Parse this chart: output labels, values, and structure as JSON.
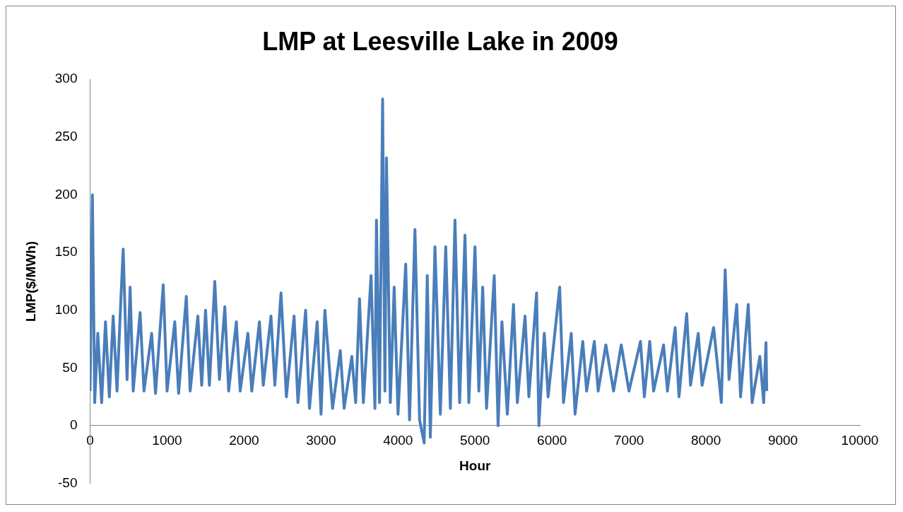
{
  "chart_data": {
    "type": "line",
    "title": "LMP at Leesville Lake in 2009",
    "xlabel": "Hour",
    "ylabel": "LMP($/MWh)",
    "x": [
      0,
      30,
      60,
      100,
      150,
      200,
      250,
      300,
      350,
      400,
      430,
      480,
      520,
      560,
      650,
      700,
      800,
      850,
      950,
      1000,
      1100,
      1150,
      1250,
      1300,
      1400,
      1450,
      1500,
      1550,
      1620,
      1680,
      1750,
      1800,
      1900,
      1950,
      2050,
      2100,
      2200,
      2250,
      2350,
      2400,
      2480,
      2550,
      2650,
      2700,
      2800,
      2850,
      2950,
      3000,
      3050,
      3150,
      3250,
      3300,
      3400,
      3450,
      3500,
      3550,
      3650,
      3700,
      3720,
      3760,
      3800,
      3830,
      3850,
      3900,
      3950,
      4000,
      4100,
      4150,
      4220,
      4280,
      4340,
      4380,
      4420,
      4480,
      4550,
      4620,
      4680,
      4740,
      4800,
      4870,
      4920,
      5000,
      5050,
      5100,
      5150,
      5250,
      5300,
      5350,
      5420,
      5500,
      5550,
      5650,
      5700,
      5800,
      5830,
      5900,
      5950,
      6100,
      6150,
      6250,
      6300,
      6400,
      6450,
      6550,
      6600,
      6700,
      6800,
      6900,
      7000,
      7150,
      7200,
      7270,
      7320,
      7450,
      7500,
      7600,
      7650,
      7750,
      7800,
      7900,
      7950,
      8100,
      8200,
      8250,
      8300,
      8400,
      8450,
      8550,
      8600,
      8700,
      8750,
      8780,
      8790
    ],
    "series": [
      {
        "color": "#4a7ebb",
        "values": [
          30,
          200,
          20,
          80,
          20,
          90,
          25,
          95,
          30,
          110,
          153,
          40,
          120,
          30,
          98,
          30,
          80,
          28,
          122,
          30,
          90,
          28,
          112,
          30,
          95,
          35,
          100,
          35,
          125,
          40,
          103,
          30,
          90,
          30,
          80,
          30,
          90,
          35,
          95,
          35,
          115,
          25,
          95,
          20,
          100,
          15,
          90,
          10,
          100,
          15,
          65,
          15,
          60,
          20,
          110,
          20,
          130,
          15,
          178,
          20,
          283,
          30,
          232,
          20,
          120,
          10,
          140,
          5,
          170,
          5,
          -15,
          130,
          -10,
          155,
          10,
          155,
          15,
          178,
          20,
          165,
          20,
          155,
          30,
          120,
          15,
          130,
          0,
          90,
          10,
          105,
          20,
          95,
          25,
          115,
          0,
          80,
          25,
          120,
          20,
          80,
          10,
          73,
          30,
          73,
          30,
          70,
          30,
          70,
          30,
          73,
          25,
          73,
          30,
          70,
          30,
          85,
          25,
          97,
          35,
          80,
          35,
          85,
          20,
          135,
          40,
          105,
          25,
          105,
          20,
          60,
          20,
          72,
          30
        ]
      }
    ],
    "xlim": [
      0,
      10000
    ],
    "xticks": [
      0,
      1000,
      2000,
      3000,
      4000,
      5000,
      6000,
      7000,
      8000,
      9000,
      10000
    ],
    "ylim": [
      -50,
      300
    ],
    "yticks": [
      -50,
      0,
      50,
      100,
      150,
      200,
      250,
      300
    ],
    "grid": false,
    "legend": false,
    "marker": "none",
    "line_style": "solid"
  }
}
